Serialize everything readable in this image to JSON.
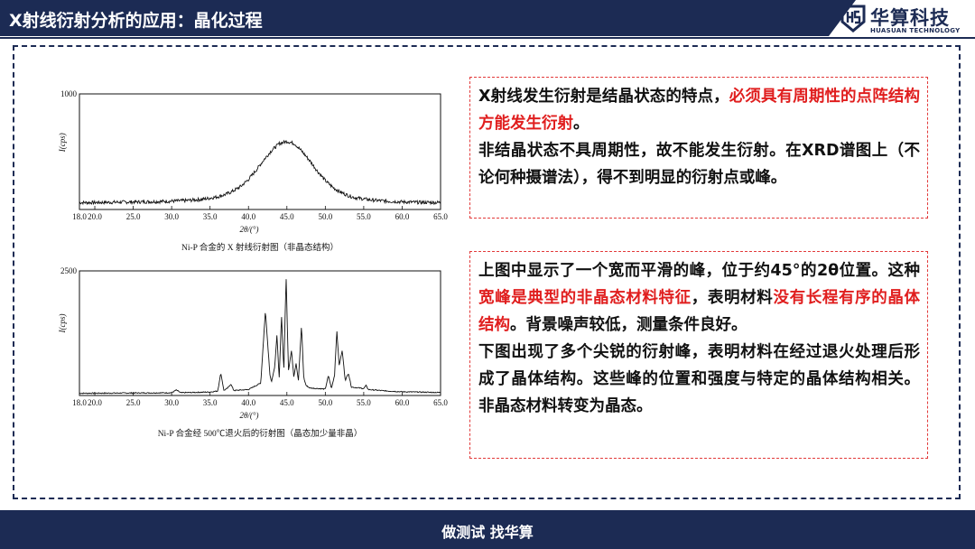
{
  "header": {
    "title": "X射线衍射分析的应用：晶化过程",
    "logo_cn": "华算科技",
    "logo_en": "HUASUAN TECHNOLOGY",
    "logo_icon": "hs-logo-icon"
  },
  "colors": {
    "navy": "#1c2b54",
    "red": "#e01e1e",
    "dash_red": "#e23a3a"
  },
  "chart_data": [
    {
      "type": "line",
      "title": "Ni-P 合金的 X 射线衍射图（非晶态结构）",
      "xlabel": "2θ/(°)",
      "ylabel": "I(cps)",
      "xlim": [
        18.0,
        65.0
      ],
      "ylim": [
        0,
        1000
      ],
      "y_tick_labels": [
        "1000"
      ],
      "x_tick_labels": [
        "18.0",
        "20.0",
        "25.0",
        "30.0",
        "35.0",
        "40.0",
        "45.0",
        "50.0",
        "55.0",
        "60.0",
        "65.0"
      ],
      "x_ticks": [
        18,
        20,
        25,
        30,
        35,
        40,
        45,
        50,
        55,
        60,
        65
      ],
      "series": [
        {
          "x": [
            18,
            20,
            22,
            24,
            26,
            28,
            30,
            32,
            34,
            36,
            37,
            38,
            39,
            40,
            41,
            42,
            43,
            44,
            45,
            46,
            47,
            48,
            49,
            50,
            51,
            52,
            53,
            54,
            56,
            58,
            60,
            62,
            65
          ],
          "y": [
            60,
            60,
            62,
            64,
            66,
            68,
            72,
            78,
            88,
            110,
            130,
            160,
            200,
            260,
            340,
            430,
            510,
            570,
            590,
            570,
            500,
            420,
            330,
            250,
            190,
            150,
            120,
            100,
            82,
            72,
            66,
            62,
            60
          ]
        }
      ]
    },
    {
      "type": "line",
      "title": "Ni-P 合金经 500℃退火后的衍射图（晶态加少量非晶）",
      "xlabel": "2θ/(°)",
      "ylabel": "I(cps)",
      "xlim": [
        18.0,
        65.0
      ],
      "ylim": [
        0,
        2500
      ],
      "y_tick_labels": [
        "2500"
      ],
      "x_tick_labels": [
        "18.0",
        "20.0",
        "25.0",
        "30.0",
        "35.0",
        "40.0",
        "45.0",
        "50.0",
        "55.0",
        "60.0",
        "65.0"
      ],
      "x_ticks": [
        18,
        20,
        25,
        30,
        35,
        40,
        45,
        50,
        55,
        60,
        65
      ],
      "series": [
        {
          "x": [
            18,
            25,
            30,
            30.6,
            31.2,
            35,
            36.0,
            36.4,
            36.8,
            37.3,
            37.7,
            38.1,
            40,
            41.6,
            42.2,
            42.8,
            43.0,
            43.4,
            43.7,
            44.0,
            44.3,
            44.6,
            44.9,
            45.2,
            45.6,
            45.9,
            46.2,
            46.5,
            46.9,
            47.2,
            47.5,
            48.0,
            50,
            50.4,
            50.8,
            51.2,
            51.5,
            51.8,
            52.2,
            52.6,
            53.0,
            53.4,
            55.0,
            55.3,
            55.6,
            58,
            60,
            65
          ],
          "y": [
            45,
            50,
            55,
            110,
            55,
            70,
            90,
            450,
            100,
            150,
            230,
            100,
            120,
            250,
            1700,
            400,
            280,
            550,
            1200,
            350,
            1600,
            500,
            2400,
            500,
            900,
            380,
            650,
            300,
            1400,
            350,
            200,
            150,
            130,
            400,
            140,
            400,
            1300,
            600,
            900,
            300,
            450,
            170,
            140,
            200,
            120,
            90,
            75,
            60
          ]
        }
      ]
    }
  ],
  "box1": {
    "p1_a": "X射线发生衍射是结晶状态的特点，",
    "p1_red": "必须具有周期性的点阵结构方能发生衍射",
    "p1_b": "。",
    "p2": "非结晶状态不具周期性，故不能发生衍射。在XRD谱图上（不论何种摄谱法），得不到明显的衍射点或峰。"
  },
  "box2": {
    "p1_a": "上图中显示了一个宽而平滑的峰，位于约45°的2θ位置。这种",
    "p1_red1": "宽峰是典型的非晶态材料特征",
    "p1_b": "，表明材料",
    "p1_red2": "没有长程有序的晶体结构",
    "p1_c": "。背景噪声较低，测量条件良好。",
    "p2": "下图出现了多个尖锐的衍射峰，表明材料在经过退火处理后形成了晶体结构。这些峰的位置和强度与特定的晶体结构相关。非晶态材料转变为晶态。"
  },
  "footer": {
    "text": "做测试 找华算"
  }
}
